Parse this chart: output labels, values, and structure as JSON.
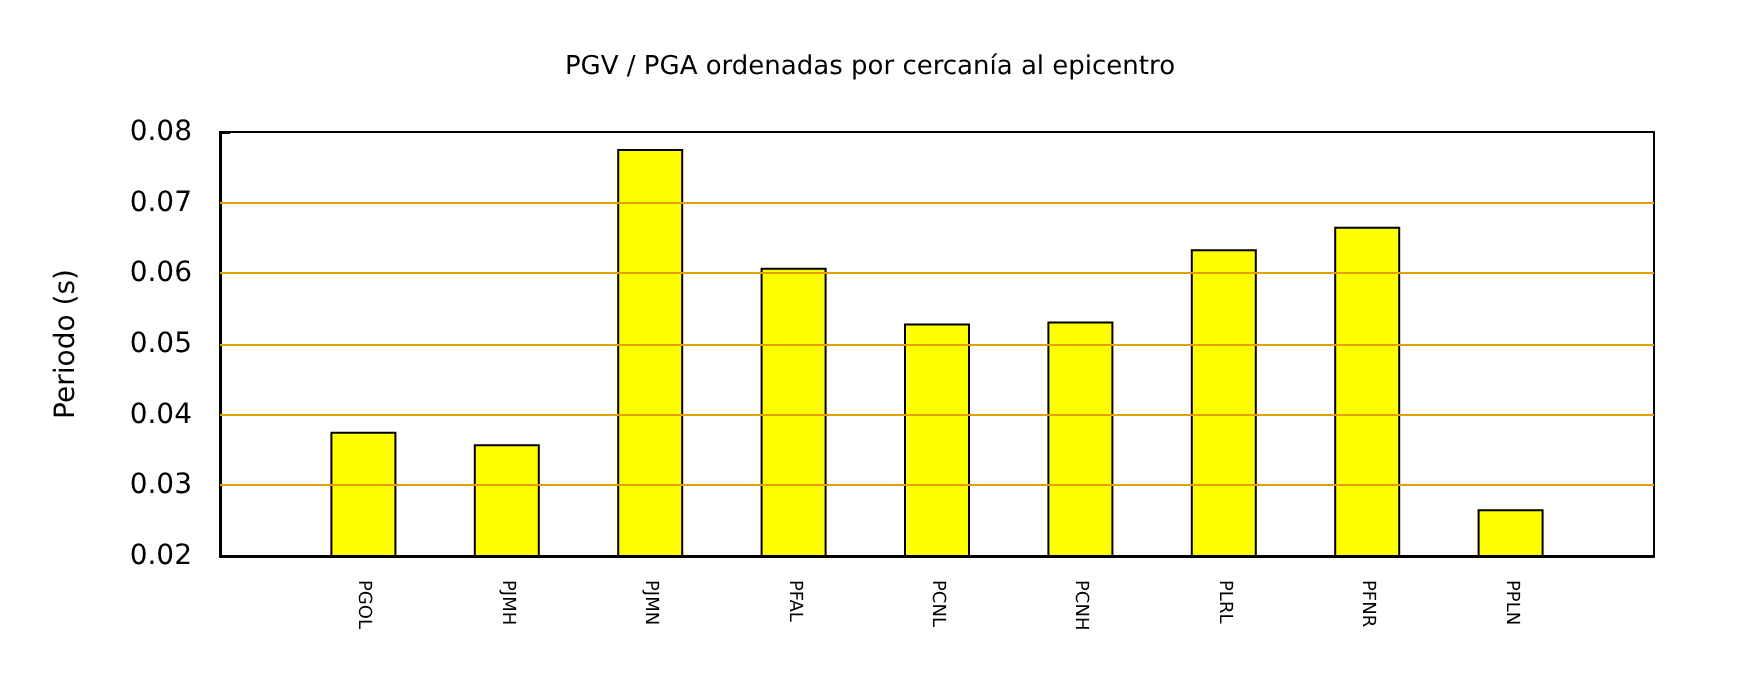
{
  "chart_data": {
    "type": "bar",
    "title": "PGV / PGA ordenadas por cercanía al epicentro",
    "ylabel": "Periodo (s)",
    "categories": [
      null,
      "PGOL",
      "PJMH",
      "PJMN",
      "PFAL",
      "PCNL",
      "PCNH",
      "PLRL",
      "PFNR",
      "PPLN",
      null
    ],
    "values": [
      null,
      0.0376,
      0.0358,
      0.0776,
      0.0608,
      0.0529,
      0.0532,
      0.0634,
      0.0666,
      0.0266,
      null
    ],
    "color": "#ffff00",
    "ylim": [
      0.02,
      0.08
    ],
    "yticks": [
      0.02,
      0.03,
      0.04,
      0.05,
      0.06,
      0.07,
      0.08
    ],
    "grid": "y"
  }
}
